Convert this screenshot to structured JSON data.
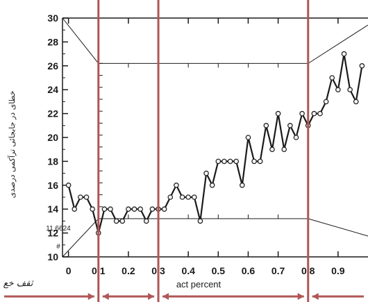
{
  "chart_data": {
    "type": "line",
    "xlabel": "act percent",
    "ylabel": "خطای در جابجائی ترآکمی درصدی",
    "xlim": [
      -0.02,
      1.0
    ],
    "ylim": [
      10,
      30
    ],
    "x_ticks": [
      "0",
      "0.1",
      "0.2",
      "0.3",
      "0.4",
      "0.5",
      "0.6",
      "0.7",
      "0.8",
      "0.9"
    ],
    "y_ticks": [
      "10",
      "12",
      "14",
      "16",
      "18",
      "20",
      "22",
      "24",
      "26",
      "28",
      "30"
    ],
    "annotations": [
      "11.6624",
      "#"
    ],
    "logo_text": "ثقف خع",
    "colors": {
      "line": "#1a1a1a",
      "marker_fill": "#f2f2f2",
      "divider": "#b05656",
      "frame": "#1a1a1a"
    },
    "dividers_x": [
      0.1,
      0.3,
      0.8
    ],
    "inner_box": {
      "x": [
        0.1,
        0.8
      ],
      "y": [
        13.2,
        26.2
      ]
    },
    "series": [
      {
        "x": [
          0,
          0.02,
          0.04,
          0.06,
          0.08,
          0.1,
          0.12,
          0.14,
          0.16,
          0.18,
          0.2,
          0.22,
          0.24,
          0.26,
          0.28,
          0.3,
          0.32,
          0.34,
          0.36,
          0.38,
          0.4,
          0.42,
          0.44,
          0.46,
          0.48,
          0.5,
          0.52,
          0.54,
          0.56,
          0.58,
          0.6,
          0.62,
          0.64,
          0.66,
          0.68,
          0.7,
          0.72,
          0.74,
          0.76,
          0.78,
          0.8,
          0.82,
          0.84,
          0.86,
          0.88,
          0.9,
          0.92,
          0.94,
          0.96,
          0.98
        ],
        "y": [
          16,
          14,
          15,
          15,
          14,
          12,
          14,
          14,
          13,
          13,
          14,
          14,
          14,
          13,
          14,
          14,
          14,
          15,
          16,
          15,
          15,
          15,
          13,
          17,
          16,
          18,
          18,
          18,
          18,
          16,
          20,
          18,
          18,
          21,
          19,
          22,
          19,
          21,
          20,
          22,
          21,
          22,
          22,
          23,
          25,
          24,
          27,
          24,
          23,
          26
        ]
      }
    ]
  }
}
